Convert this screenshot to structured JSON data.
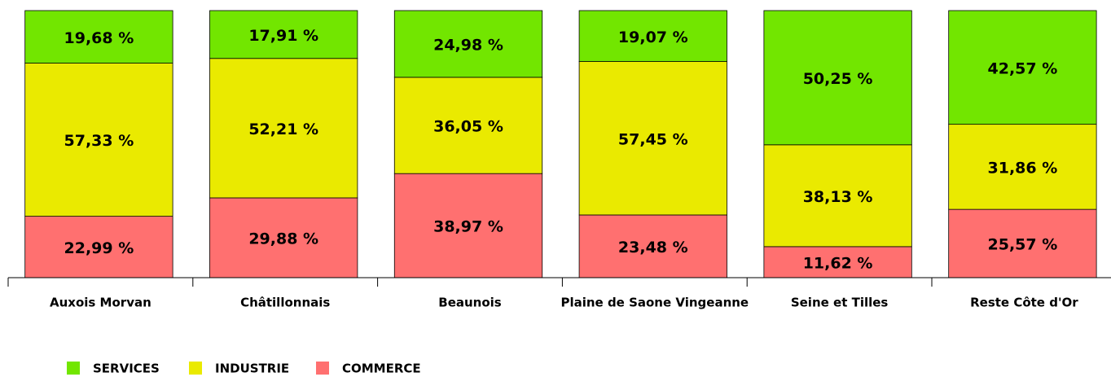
{
  "chart_data": {
    "type": "bar",
    "stacked": true,
    "categories": [
      "Auxois Morvan",
      "Châtillonnais",
      "Beaunois",
      "Plaine de Saone Vingeanne",
      "Seine et Tilles",
      "Reste Côte d'Or"
    ],
    "series": [
      {
        "name": "SERVICES",
        "color": "#72e600",
        "values": [
          19.68,
          17.91,
          24.98,
          19.07,
          50.25,
          42.57
        ],
        "value_labels": [
          "19,68 %",
          "17,91 %",
          "24,98 %",
          "19,07 %",
          "50,25 %",
          "42,57 %"
        ]
      },
      {
        "name": "INDUSTRIE",
        "color": "#eaea00",
        "values": [
          57.33,
          52.21,
          36.05,
          57.45,
          38.13,
          31.86
        ],
        "value_labels": [
          "57,33 %",
          "52,21 %",
          "36,05 %",
          "57,45 %",
          "38,13 %",
          "31,86 %"
        ]
      },
      {
        "name": "COMMERCE",
        "color": "#ff7070",
        "values": [
          22.99,
          29.88,
          38.97,
          23.48,
          11.62,
          25.57
        ],
        "value_labels": [
          "22,99 %",
          "29,88 %",
          "38,97 %",
          "23,48 %",
          "11,62 %",
          "25,57 %"
        ]
      }
    ],
    "ylim": [
      0,
      100
    ]
  }
}
